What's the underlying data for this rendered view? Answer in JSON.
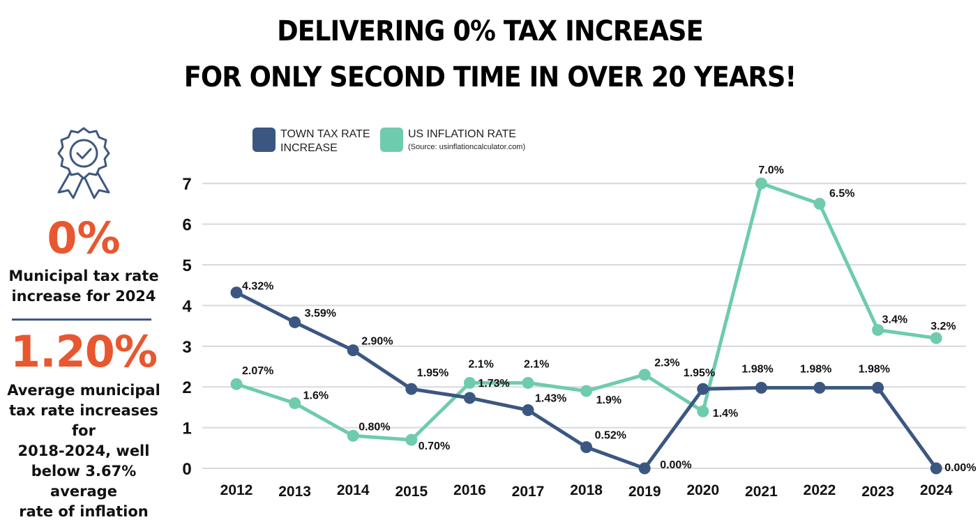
{
  "header": {
    "title_line1": "DELIVERING 0% TAX INCREASE",
    "title_line2": "FOR ONLY SECOND TIME IN OVER 20 YEARS!"
  },
  "sidebar": {
    "icon": "award-ribbon-check-icon",
    "stat1_value": "0%",
    "stat1_label_line1": "Municipal tax rate",
    "stat1_label_line2": "increase for 2024",
    "stat2_value": "1.20%",
    "stat2_label_lines": [
      "Average municipal",
      "tax rate increases for",
      "2018-2024, well",
      "below 3.67% average",
      "rate of inflation"
    ]
  },
  "colors": {
    "town": "#3b5781",
    "inflation": "#6ecbae",
    "accent": "#e8572f",
    "grid": "#d9d9d9"
  },
  "chart_data": {
    "type": "line",
    "title": "",
    "xlabel": "",
    "ylabel": "",
    "x": [
      "2012",
      "2013",
      "2014",
      "2015",
      "2016",
      "2017",
      "2018",
      "2019",
      "2020",
      "2021",
      "2022",
      "2023",
      "2024"
    ],
    "ylim": [
      0,
      7
    ],
    "yticks": [
      "0",
      "1",
      "2",
      "3",
      "4",
      "5",
      "6",
      "7"
    ],
    "grid": true,
    "legend_position": "top",
    "series": [
      {
        "name": "TOWN TAX RATE INCREASE",
        "legend_line1": "TOWN TAX RATE",
        "legend_line2": "INCREASE",
        "values": [
          4.32,
          3.59,
          2.9,
          1.95,
          1.73,
          1.43,
          0.52,
          0.0,
          1.95,
          1.98,
          1.98,
          1.98,
          0.0
        ],
        "labels": [
          "4.32%",
          "3.59%",
          "2.90%",
          "1.95%",
          "1.73%",
          "1.43%",
          "0.52%",
          "0.00%",
          "1.95%",
          "1.98%",
          "1.98%",
          "1.98%",
          "0.00%"
        ]
      },
      {
        "name": "US INFLATION RATE",
        "legend_line1": "US INFLATION RATE",
        "legend_line2": "(Source: usinflationcalculator.com)",
        "values": [
          2.07,
          1.6,
          0.8,
          0.7,
          2.1,
          2.1,
          1.9,
          2.3,
          1.4,
          7.0,
          6.5,
          3.4,
          3.2
        ],
        "labels": [
          "2.07%",
          "1.6%",
          "0.80%",
          "0.70%",
          "2.1%",
          "2.1%",
          "1.9%",
          "2.3%",
          "1.4%",
          "7.0%",
          "6.5%",
          "3.4%",
          "3.2%"
        ]
      }
    ]
  }
}
